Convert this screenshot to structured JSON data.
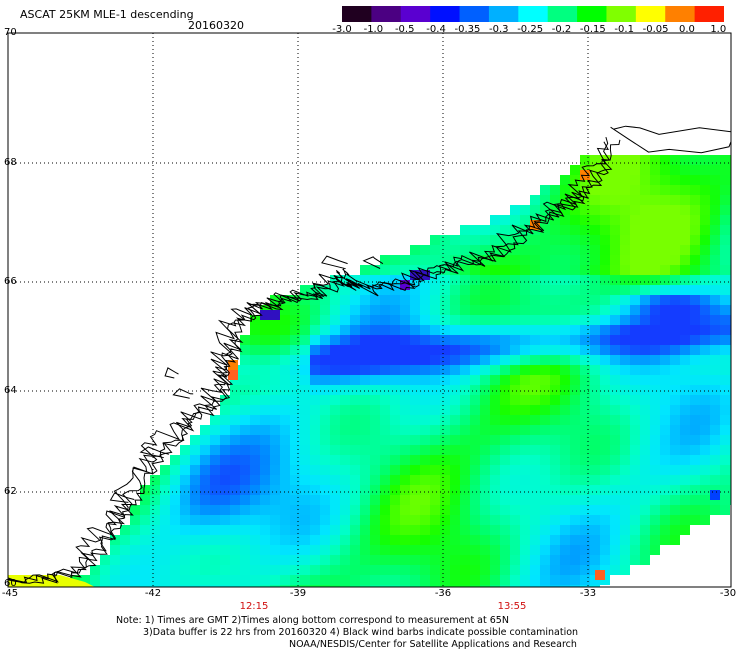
{
  "header": {
    "title": "ASCAT 25KM MLE-1 descending",
    "date": "20160320"
  },
  "colorbar": {
    "labels": [
      "-3.0",
      "-1.0",
      "-0.5",
      "-0.4",
      "-0.35",
      "-0.3",
      "-0.25",
      "-0.2",
      "-0.15",
      "-0.1",
      "-0.05",
      "0.0",
      "1.0"
    ],
    "colors": [
      "#200020",
      "#4b0082",
      "#5a00d0",
      "#0010ff",
      "#0060ff",
      "#00b0ff",
      "#00ffff",
      "#00ff80",
      "#00ff00",
      "#80ff00",
      "#ffff00",
      "#ff8000",
      "#ff2000"
    ]
  },
  "map": {
    "lat_labels": [
      "70",
      "68",
      "66",
      "64",
      "62",
      "60"
    ],
    "lon_labels": [
      "-45",
      "-42",
      "-39",
      "-36",
      "-33",
      "-30"
    ],
    "time_labels": [
      "12:15",
      "13:55"
    ]
  },
  "notes": {
    "line1": "Note: 1) Times are GMT 2)Times along bottom correspond to measurement at 65N",
    "line2": "3)Data buffer is 22 hrs from 20160320 4) Black wind barbs indicate possible contamination",
    "line3": "NOAA/NESDIS/Center for Satellite Applications and Research"
  }
}
